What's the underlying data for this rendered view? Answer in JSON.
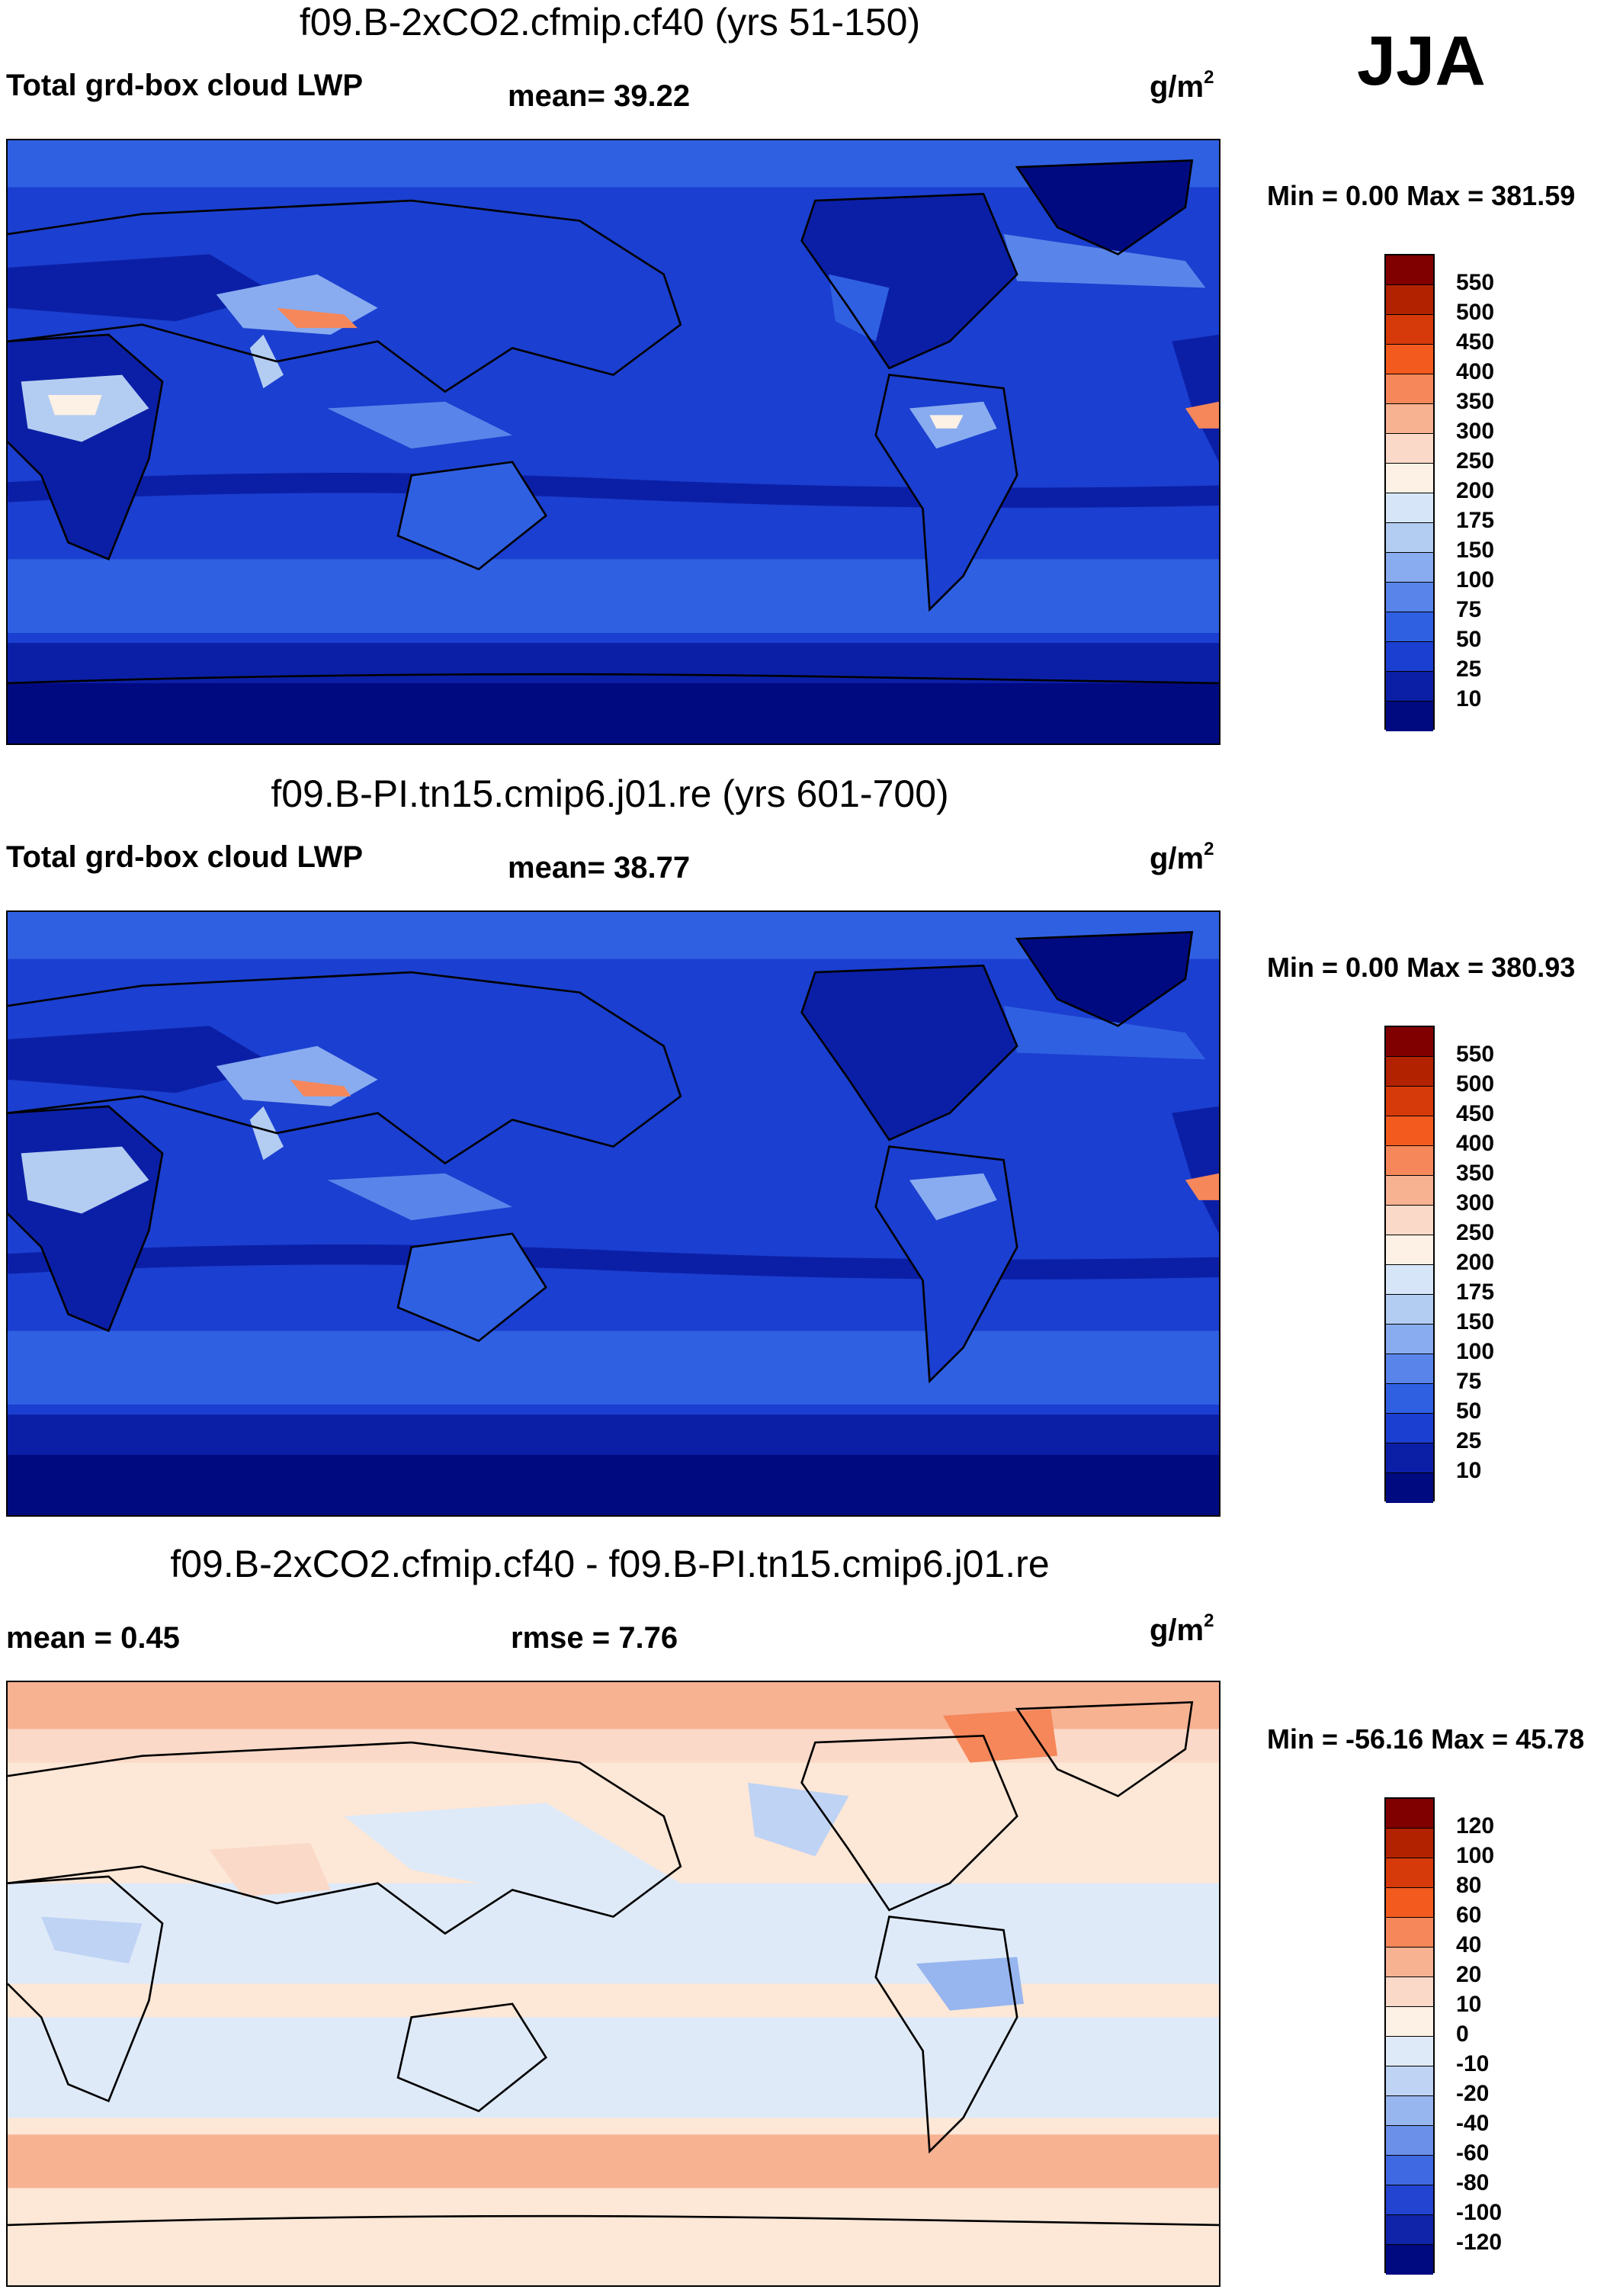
{
  "season": "JJA",
  "panels": [
    {
      "title": "f09.B-2xCO2.cfmip.cf40 (yrs 51-150)",
      "left_label": "Total grd-box cloud LWP",
      "center_label": "mean=  39.22",
      "units": "g/m",
      "units_sup": "2",
      "minmax": "Min =   0.00 Max = 381.59",
      "colorbar": {
        "levels": [
          "550",
          "500",
          "450",
          "400",
          "350",
          "300",
          "250",
          "200",
          "175",
          "150",
          "100",
          "75",
          "50",
          "25",
          "10"
        ],
        "colors": [
          "#800000",
          "#b22200",
          "#d63a0a",
          "#f25a1e",
          "#f5875a",
          "#f7b292",
          "#fbd9c8",
          "#fdf0e5",
          "#d6e6f8",
          "#b3cdf2",
          "#88acef",
          "#5985ea",
          "#3060e2",
          "#1b3fd0",
          "#0b1fa6",
          "#000a80"
        ]
      }
    },
    {
      "title": "f09.B-PI.tn15.cmip6.j01.re (yrs 601-700)",
      "left_label": "Total grd-box cloud LWP",
      "center_label": "mean=  38.77",
      "units": "g/m",
      "units_sup": "2",
      "minmax": "Min =   0.00 Max = 380.93",
      "colorbar": {
        "levels": [
          "550",
          "500",
          "450",
          "400",
          "350",
          "300",
          "250",
          "200",
          "175",
          "150",
          "100",
          "75",
          "50",
          "25",
          "10"
        ],
        "colors": [
          "#800000",
          "#b22200",
          "#d63a0a",
          "#f25a1e",
          "#f5875a",
          "#f7b292",
          "#fbd9c8",
          "#fdf0e5",
          "#d6e6f8",
          "#b3cdf2",
          "#88acef",
          "#5985ea",
          "#3060e2",
          "#1b3fd0",
          "#0b1fa6",
          "#000a80"
        ]
      }
    },
    {
      "title": "f09.B-2xCO2.cfmip.cf40 - f09.B-PI.tn15.cmip6.j01.re",
      "left_label": "mean =   0.45",
      "center_label": "rmse =   7.76",
      "units": "g/m",
      "units_sup": "2",
      "minmax": "Min = -56.16 Max =  45.78",
      "colorbar": {
        "levels": [
          "120",
          "100",
          "80",
          "60",
          "40",
          "20",
          "10",
          "0",
          "-10",
          "-20",
          "-40",
          "-60",
          "-80",
          "-100",
          "-120"
        ],
        "colors": [
          "#800000",
          "#b22200",
          "#d63a0a",
          "#f25a1e",
          "#f5875a",
          "#f7b292",
          "#fbd9c8",
          "#fdf0e5",
          "#dfeaf8",
          "#bfd3f4",
          "#97b5ef",
          "#6a90ea",
          "#3f69e2",
          "#2244d0",
          "#0f24a8",
          "#000a80"
        ]
      }
    }
  ],
  "colors": {
    "map_background_full": "#1e45d4",
    "map_background_diff": "#fde7d6",
    "land_outline": "#000000"
  }
}
